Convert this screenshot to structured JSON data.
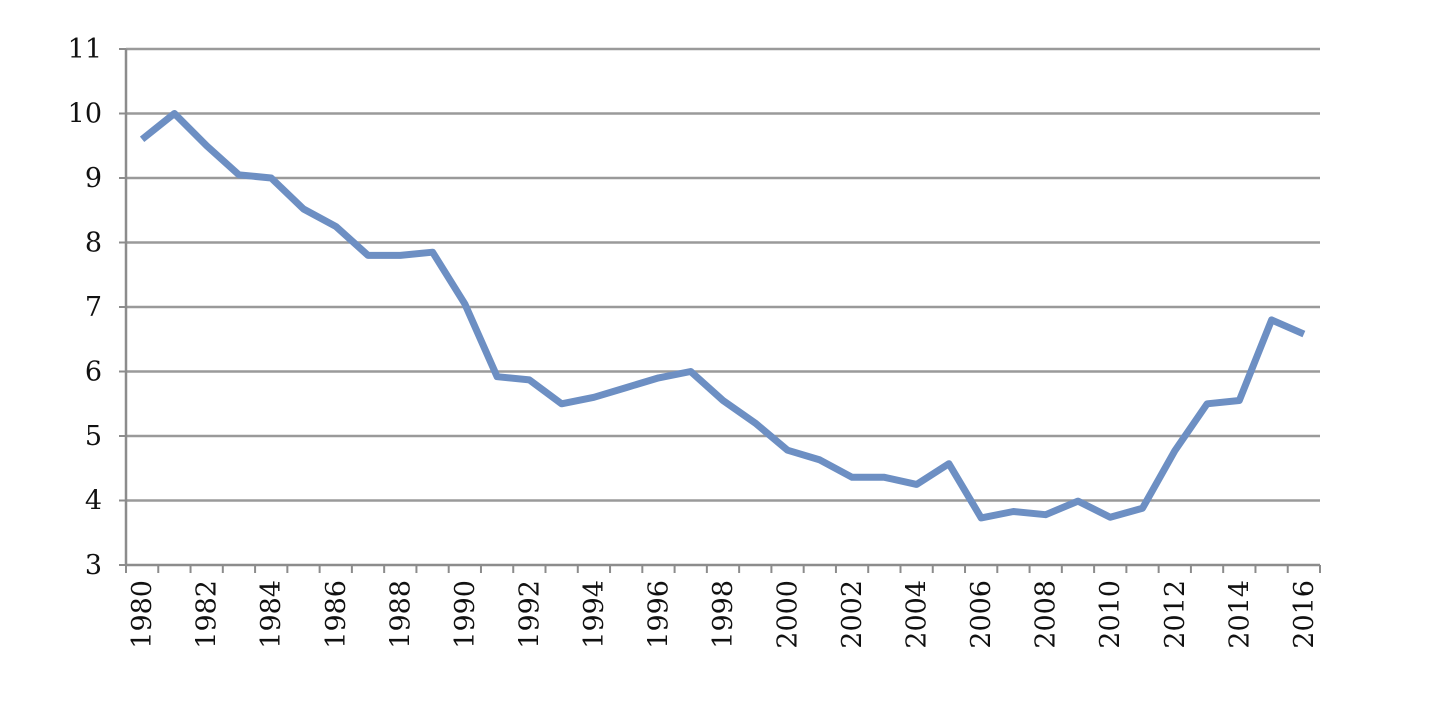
{
  "chart_data": {
    "type": "line",
    "title": "",
    "xlabel": "",
    "ylabel": "",
    "ylim": [
      3,
      11
    ],
    "y_ticks": [
      3,
      4,
      5,
      6,
      7,
      8,
      9,
      10,
      11
    ],
    "x_tick_labels": [
      "1980",
      "1982",
      "1984",
      "1986",
      "1988",
      "1990",
      "1992",
      "1994",
      "1996",
      "1998",
      "2000",
      "2002",
      "2004",
      "2006",
      "2008",
      "2010",
      "2012",
      "2014",
      "2016"
    ],
    "grid": "horizontal",
    "legend": "none",
    "x": [
      1980,
      1981,
      1982,
      1983,
      1984,
      1985,
      1986,
      1987,
      1988,
      1989,
      1990,
      1991,
      1992,
      1993,
      1994,
      1995,
      1996,
      1997,
      1998,
      1999,
      2000,
      2001,
      2002,
      2003,
      2004,
      2005,
      2006,
      2007,
      2008,
      2009,
      2010,
      2011,
      2012,
      2013,
      2014,
      2015,
      2016
    ],
    "series": [
      {
        "color": "#6d8fc3",
        "values": [
          9.6,
          10.0,
          9.5,
          9.05,
          9.0,
          8.52,
          8.25,
          7.8,
          7.8,
          7.85,
          7.05,
          5.92,
          5.87,
          5.5,
          5.6,
          5.75,
          5.9,
          6.0,
          5.55,
          5.2,
          4.78,
          4.63,
          4.36,
          4.36,
          4.25,
          4.57,
          3.73,
          3.83,
          3.78,
          3.99,
          3.74,
          3.88,
          4.77,
          5.5,
          5.55,
          6.8,
          6.58
        ]
      }
    ]
  },
  "colors": {
    "grid": "#9a9a9a",
    "axis": "#8c8c8c",
    "text": "#111111"
  }
}
